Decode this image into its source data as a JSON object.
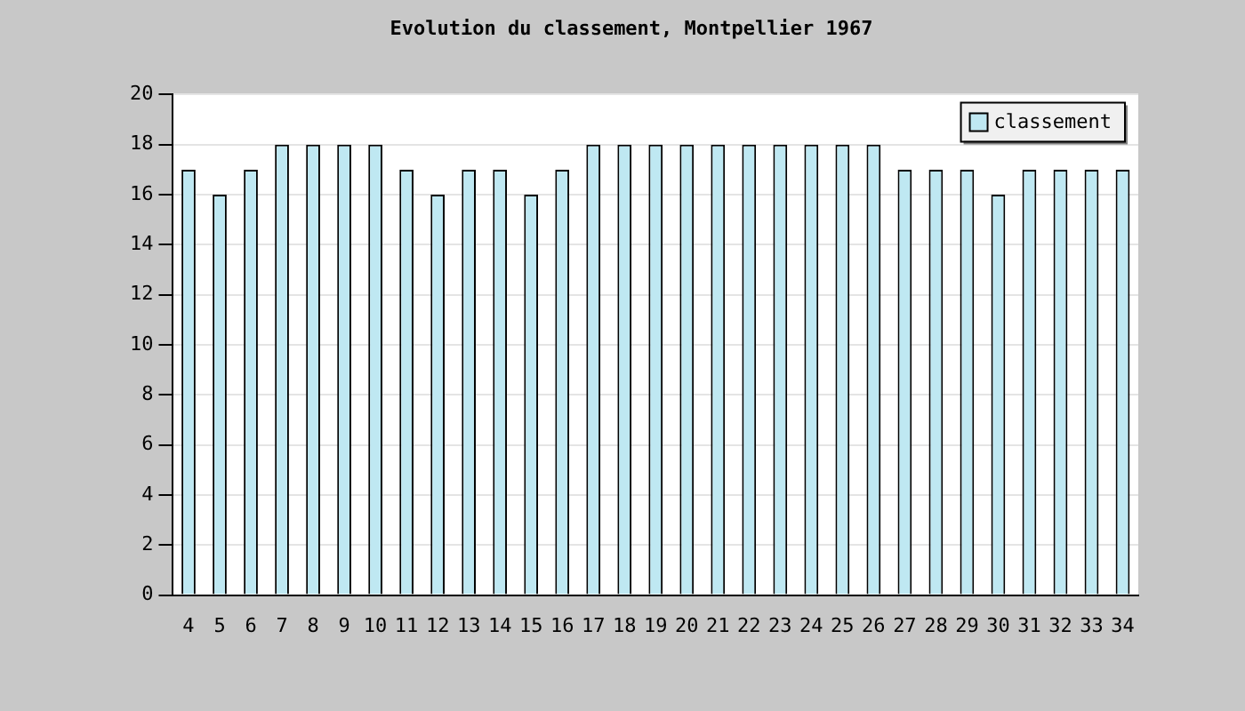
{
  "chart_data": {
    "type": "bar",
    "title": "Evolution du classement, Montpellier 1967",
    "categories": [
      "4",
      "5",
      "6",
      "7",
      "8",
      "9",
      "10",
      "11",
      "12",
      "13",
      "14",
      "15",
      "16",
      "17",
      "18",
      "19",
      "20",
      "21",
      "22",
      "23",
      "24",
      "25",
      "26",
      "27",
      "28",
      "29",
      "30",
      "31",
      "32",
      "33",
      "34"
    ],
    "series": [
      {
        "name": "classement",
        "color": "#bfe8f2",
        "values": [
          17,
          16,
          17,
          18,
          18,
          18,
          18,
          17,
          16,
          17,
          17,
          16,
          17,
          18,
          18,
          18,
          18,
          18,
          18,
          18,
          18,
          18,
          18,
          17,
          17,
          17,
          16,
          17,
          17,
          17,
          17
        ]
      }
    ],
    "ylim": [
      0,
      20
    ],
    "yticks": [
      0,
      2,
      4,
      6,
      8,
      10,
      12,
      14,
      16,
      18,
      20
    ],
    "grid": "y",
    "legend": "top right"
  }
}
